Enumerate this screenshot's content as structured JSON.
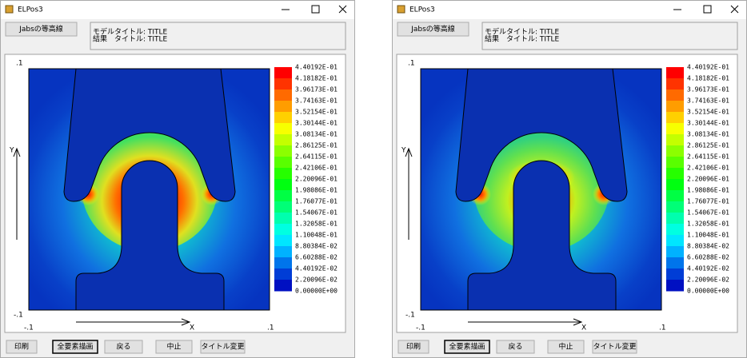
{
  "windows": [
    {
      "title": "ELPos3",
      "contour_button": "Jabsの等高線",
      "model_title": "モデルタイトル: TITLE",
      "result_title": "結果　タイトル: TITLE",
      "y_top": ".1",
      "y_bottom": "-.1",
      "y_axis": "Y",
      "x_left": "-.1",
      "x_right": ".1",
      "x_axis": "X",
      "legend": [
        "4.40192E-01",
        "4.18182E-01",
        "3.96173E-01",
        "3.74163E-01",
        "3.52154E-01",
        "3.30144E-01",
        "3.08134E-01",
        "2.86125E-01",
        "2.64115E-01",
        "2.42106E-01",
        "2.20096E-01",
        "1.98086E-01",
        "1.76077E-01",
        "1.54067E-01",
        "1.32058E-01",
        "1.10048E-01",
        "8.80384E-02",
        "6.60288E-02",
        "4.40192E-02",
        "2.20096E-02",
        "0.00000E+00"
      ],
      "buttons": [
        "印刷",
        "全要素描画",
        "戻る",
        "中止",
        "タイトル変更"
      ]
    },
    {
      "title": "ELPos3",
      "contour_button": "Jabsの等高線",
      "model_title": "モデルタイトル: TITLE",
      "result_title": "結果　タイトル: TITLE",
      "y_top": ".1",
      "y_bottom": "-.1",
      "y_axis": "Y",
      "x_left": "-.1",
      "x_right": ".1",
      "x_axis": "X",
      "legend": [
        "4.40192E-01",
        "4.18182E-01",
        "3.96173E-01",
        "3.74163E-01",
        "3.52154E-01",
        "3.30144E-01",
        "3.08134E-01",
        "2.86125E-01",
        "2.64115E-01",
        "2.42106E-01",
        "2.20096E-01",
        "1.98086E-01",
        "1.76077E-01",
        "1.54067E-01",
        "1.32058E-01",
        "1.10048E-01",
        "8.80384E-02",
        "6.60288E-02",
        "4.40192E-02",
        "2.20096E-02",
        "0.00000E+00"
      ],
      "buttons": [
        "印刷",
        "全要素描画",
        "戻る",
        "中止",
        "タイトル変更"
      ]
    }
  ]
}
